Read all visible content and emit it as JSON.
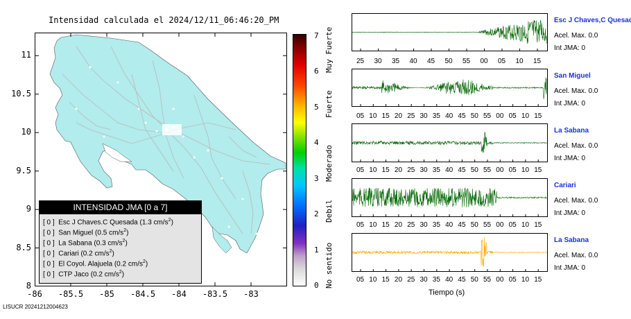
{
  "map": {
    "title": "Intensidad calculada el 2024/12/11_06:46:20_PM",
    "lat_ticks": [
      "11",
      "10.5",
      "10",
      "9.5",
      "9",
      "8.5",
      "8"
    ],
    "lon_ticks": [
      "-86",
      "-85.5",
      "-85",
      "-84.5",
      "-84",
      "-83.5",
      "-83"
    ],
    "land_color": "#b2ecec",
    "road_color": "#b9b9b9",
    "footer_id": "LISUCR 20241212004623"
  },
  "colorbar": {
    "ticks": [
      "0",
      "1",
      "2",
      "3",
      "4",
      "5",
      "6",
      "7"
    ],
    "labels": [
      "No sentido",
      "Debil",
      "Moderado",
      "Fuerte",
      "Muy Fuerte"
    ]
  },
  "legend": {
    "title": "INTENSIDAD JMA [0 a 7]",
    "rows": [
      {
        "int": "[ 0 ]",
        "text": "Esc J Chaves.C Quesada (1.3 cm/s",
        "sup": "2",
        "close": ")"
      },
      {
        "int": "[ 0 ]",
        "text": "San Miguel (0.5 cm/s",
        "sup": "2",
        "close": ")"
      },
      {
        "int": "[ 0 ]",
        "text": "La Sabana (0.3 cm/s",
        "sup": "2",
        "close": ")"
      },
      {
        "int": "[ 0 ]",
        "text": "Cariari (0.2 cm/s",
        "sup": "2",
        "close": ")"
      },
      {
        "int": "[ 0 ]",
        "text": "El Coyol. Alajuela (0.2 cm/s",
        "sup": "2",
        "close": ")"
      },
      {
        "int": "[ 0 ]",
        "text": "CTP Jaco (0.2 cm/s",
        "sup": "2",
        "close": ")"
      }
    ]
  },
  "stations": [
    {
      "name": "Esc J Chaves,C Quesada",
      "acel": "Acel. Max. 0.0",
      "int": "Int JMA: 0",
      "ticks": [
        "25",
        "30",
        "35",
        "40",
        "45",
        "50",
        "55",
        "00",
        "05",
        "10",
        "15"
      ],
      "color": "#006400"
    },
    {
      "name": "San Miguel",
      "acel": "Acel. Max. 0.0",
      "int": "Int JMA: 0",
      "ticks": [
        "05",
        "10",
        "15",
        "20",
        "25",
        "30",
        "35",
        "40",
        "45",
        "50",
        "55",
        "00",
        "05",
        "10",
        "15"
      ],
      "color": "#006400"
    },
    {
      "name": "La Sabana",
      "acel": "Acel. Max. 0.0",
      "int": "Int JMA: 0",
      "ticks": [
        "05",
        "10",
        "15",
        "20",
        "25",
        "30",
        "35",
        "40",
        "45",
        "50",
        "55",
        "00",
        "05",
        "10",
        "15"
      ],
      "color": "#006400"
    },
    {
      "name": "Cariari",
      "acel": "Acel. Max. 0.0",
      "int": "Int JMA: 0",
      "ticks": [
        "05",
        "10",
        "15",
        "20",
        "25",
        "30",
        "35",
        "40",
        "45",
        "50",
        "55",
        "00",
        "05",
        "10",
        "15"
      ],
      "color": "#006400"
    },
    {
      "name": "La Sabana",
      "acel": "Acel. Max. 0.0",
      "int": "Int JMA: 0",
      "ticks": [
        "05",
        "10",
        "15",
        "20",
        "25",
        "30",
        "35",
        "40",
        "45",
        "50",
        "55",
        "00",
        "05",
        "10",
        "15"
      ],
      "color": "#ffa500"
    }
  ],
  "time_axis_label": "Tiempo (s)",
  "chart_data": [
    {
      "type": "heatmap",
      "title": "Intensidad calculada el 2024/12/11_06:46:20_PM",
      "xlabel": "",
      "ylabel": "",
      "xlim": [
        -86,
        -82.5
      ],
      "ylim": [
        8,
        11.3
      ],
      "colorbar_range": [
        0,
        7
      ]
    }
  ]
}
